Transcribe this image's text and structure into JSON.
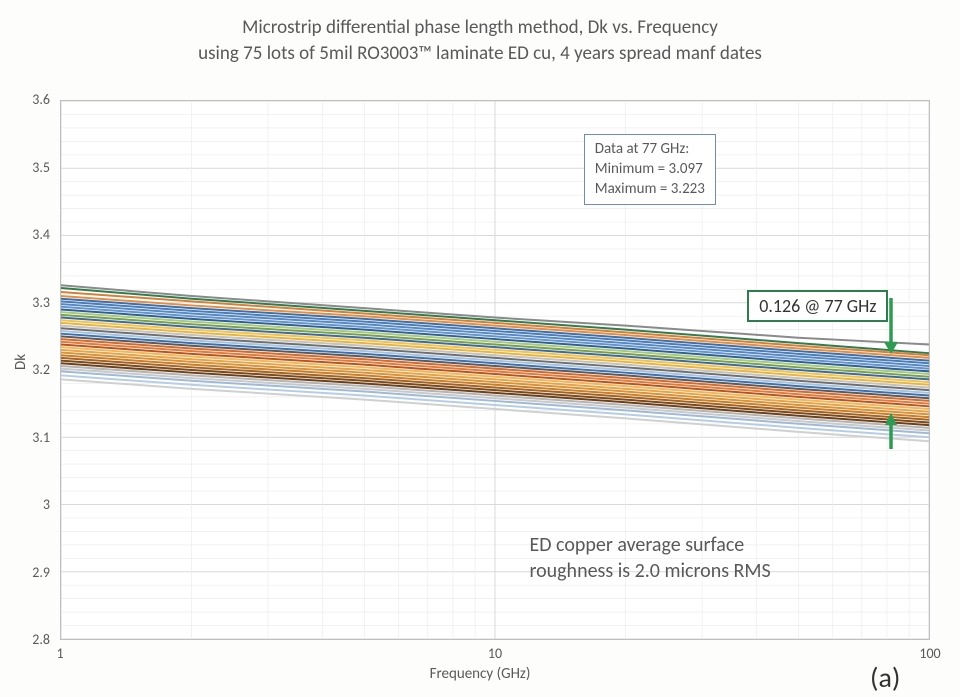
{
  "title": {
    "line1": "Microstrip differential phase length method, Dk vs. Frequency",
    "line2": "using 75 lots of 5mil RO3003™ laminate ED cu, 4 years spread manf dates",
    "fontsize": 19,
    "color": "#595959"
  },
  "axes": {
    "xlabel": "Frequency (GHz)",
    "ylabel": "Dk",
    "x_scale": "log",
    "xlim": [
      1,
      100
    ],
    "ylim": [
      2.8,
      3.6
    ],
    "ytick_step": 0.1,
    "yticks": [
      "2.8",
      "2.9",
      "3",
      "3.1",
      "3.2",
      "3.3",
      "3.4",
      "3.5",
      "3.6"
    ],
    "xticks_major": [
      1,
      10,
      100
    ],
    "xticks_major_labels": [
      "1",
      "10",
      "100"
    ],
    "label_fontsize": 15,
    "tick_fontsize": 14,
    "grid_color": "#d9d9d9",
    "minor_grid_color": "#ececec",
    "border_color": "#bfbfbf",
    "plot_bg": "#ffffff"
  },
  "info_box": {
    "lines": [
      "Data at 77 GHz:",
      "Minimum  = 3.097",
      "Maximum  = 3.223"
    ],
    "border_color": "#6f8db8",
    "fontsize": 15,
    "pos_freq": 16,
    "pos_dk": 3.55
  },
  "callout": {
    "text": "0.126 @ 77 GHz",
    "border_color": "#2f7d4f",
    "fontsize": 18,
    "arrow_color": "#2e9a52"
  },
  "footnote": {
    "line1": "ED copper average surface",
    "line2": "roughness is 2.0 microns RMS",
    "fontsize": 20
  },
  "panel_label": "(a)",
  "chart": {
    "type": "line",
    "x_points_ghz": [
      1,
      2,
      5,
      10,
      20,
      50,
      100
    ],
    "line_width": 2,
    "series": [
      {
        "color": "#8a8a8a",
        "y": [
          3.326,
          3.31,
          3.292,
          3.278,
          3.266,
          3.248,
          3.238
        ]
      },
      {
        "color": "#2f7d4f",
        "y": [
          3.322,
          3.306,
          3.288,
          3.274,
          3.26,
          3.24,
          3.225
        ]
      },
      {
        "color": "#d67f3a",
        "y": [
          3.316,
          3.302,
          3.284,
          3.27,
          3.256,
          3.236,
          3.222
        ]
      },
      {
        "color": "#e28f44",
        "y": [
          3.31,
          3.296,
          3.28,
          3.266,
          3.252,
          3.232,
          3.218
        ]
      },
      {
        "color": "#3f6fa8",
        "y": [
          3.306,
          3.292,
          3.276,
          3.262,
          3.248,
          3.228,
          3.214
        ]
      },
      {
        "color": "#4a7db8",
        "y": [
          3.302,
          3.288,
          3.272,
          3.258,
          3.244,
          3.224,
          3.21
        ]
      },
      {
        "color": "#5689c3",
        "y": [
          3.298,
          3.284,
          3.268,
          3.254,
          3.24,
          3.22,
          3.206
        ]
      },
      {
        "color": "#6494cc",
        "y": [
          3.294,
          3.28,
          3.264,
          3.25,
          3.236,
          3.216,
          3.202
        ]
      },
      {
        "color": "#2e5f96",
        "y": [
          3.29,
          3.276,
          3.26,
          3.246,
          3.232,
          3.212,
          3.198
        ]
      },
      {
        "color": "#a7c97c",
        "y": [
          3.286,
          3.272,
          3.256,
          3.242,
          3.228,
          3.208,
          3.194
        ]
      },
      {
        "color": "#7aa04e",
        "y": [
          3.282,
          3.268,
          3.252,
          3.238,
          3.224,
          3.204,
          3.19
        ]
      },
      {
        "color": "#3b6aa0",
        "y": [
          3.278,
          3.264,
          3.248,
          3.234,
          3.22,
          3.2,
          3.186
        ]
      },
      {
        "color": "#f2c24b",
        "y": [
          3.274,
          3.26,
          3.244,
          3.23,
          3.216,
          3.196,
          3.182
        ]
      },
      {
        "color": "#e8b63e",
        "y": [
          3.27,
          3.256,
          3.24,
          3.226,
          3.212,
          3.192,
          3.178
        ]
      },
      {
        "color": "#c2c2c2",
        "y": [
          3.266,
          3.252,
          3.236,
          3.222,
          3.208,
          3.188,
          3.174
        ]
      },
      {
        "color": "#6f6f6f",
        "y": [
          3.262,
          3.248,
          3.232,
          3.218,
          3.204,
          3.184,
          3.17
        ]
      },
      {
        "color": "#a8c2de",
        "y": [
          3.258,
          3.244,
          3.228,
          3.214,
          3.2,
          3.18,
          3.166
        ]
      },
      {
        "color": "#3d70ad",
        "y": [
          3.254,
          3.24,
          3.224,
          3.21,
          3.196,
          3.176,
          3.162
        ]
      },
      {
        "color": "#5a5a5a",
        "y": [
          3.25,
          3.236,
          3.22,
          3.206,
          3.192,
          3.172,
          3.158
        ]
      },
      {
        "color": "#d46a2e",
        "y": [
          3.246,
          3.232,
          3.216,
          3.202,
          3.188,
          3.168,
          3.154
        ]
      },
      {
        "color": "#e07c3a",
        "y": [
          3.242,
          3.228,
          3.212,
          3.198,
          3.184,
          3.164,
          3.15
        ]
      },
      {
        "color": "#b85420",
        "y": [
          3.238,
          3.224,
          3.208,
          3.194,
          3.18,
          3.16,
          3.146
        ]
      },
      {
        "color": "#f0b758",
        "y": [
          3.234,
          3.22,
          3.204,
          3.19,
          3.176,
          3.156,
          3.142
        ]
      },
      {
        "color": "#e6a347",
        "y": [
          3.23,
          3.216,
          3.2,
          3.186,
          3.172,
          3.152,
          3.138
        ]
      },
      {
        "color": "#d89238",
        "y": [
          3.226,
          3.212,
          3.196,
          3.182,
          3.168,
          3.148,
          3.134
        ]
      },
      {
        "color": "#c97f28",
        "y": [
          3.222,
          3.208,
          3.192,
          3.178,
          3.164,
          3.144,
          3.13
        ]
      },
      {
        "color": "#a56320",
        "y": [
          3.218,
          3.204,
          3.188,
          3.174,
          3.16,
          3.14,
          3.126
        ]
      },
      {
        "color": "#7b4a1c",
        "y": [
          3.214,
          3.2,
          3.184,
          3.17,
          3.156,
          3.136,
          3.122
        ]
      },
      {
        "color": "#6d4018",
        "y": [
          3.21,
          3.196,
          3.18,
          3.166,
          3.152,
          3.132,
          3.118
        ]
      },
      {
        "color": "#b3b3b3",
        "y": [
          3.206,
          3.192,
          3.176,
          3.162,
          3.148,
          3.128,
          3.114
        ]
      },
      {
        "color": "#c9c9c9",
        "y": [
          3.202,
          3.188,
          3.172,
          3.158,
          3.144,
          3.124,
          3.11
        ]
      },
      {
        "color": "#9fb9d6",
        "y": [
          3.198,
          3.184,
          3.168,
          3.154,
          3.14,
          3.12,
          3.106
        ]
      },
      {
        "color": "#b6cde6",
        "y": [
          3.192,
          3.178,
          3.162,
          3.148,
          3.134,
          3.114,
          3.1
        ]
      },
      {
        "color": "#d0d0d0",
        "y": [
          3.186,
          3.172,
          3.156,
          3.142,
          3.128,
          3.108,
          3.094
        ]
      }
    ]
  }
}
